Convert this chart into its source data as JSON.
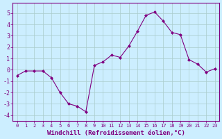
{
  "x": [
    0,
    1,
    2,
    3,
    4,
    5,
    6,
    7,
    8,
    9,
    10,
    11,
    12,
    13,
    14,
    15,
    16,
    17,
    18,
    19,
    20,
    21,
    22,
    23
  ],
  "y": [
    -0.5,
    -0.1,
    -0.1,
    -0.1,
    -0.7,
    -2.0,
    -3.0,
    -3.2,
    -3.7,
    0.4,
    0.7,
    1.3,
    1.1,
    2.1,
    3.4,
    4.8,
    5.1,
    4.3,
    3.3,
    3.1,
    0.9,
    0.5,
    -0.2,
    0.1
  ],
  "line_color": "#800080",
  "marker": "D",
  "marker_size": 2,
  "bg_color": "#cceeff",
  "grid_color": "#aacccc",
  "xlabel": "Windchill (Refroidissement éolien,°C)",
  "ylim": [
    -4.5,
    5.9
  ],
  "xlim": [
    -0.5,
    23.5
  ],
  "yticks": [
    -4,
    -3,
    -2,
    -1,
    0,
    1,
    2,
    3,
    4,
    5
  ],
  "xticks": [
    0,
    1,
    2,
    3,
    4,
    5,
    6,
    7,
    8,
    9,
    10,
    11,
    12,
    13,
    14,
    15,
    16,
    17,
    18,
    19,
    20,
    21,
    22,
    23
  ],
  "label_color": "#800080",
  "tick_color": "#800080",
  "spine_color": "#800080",
  "xlabel_fontsize": 6.5,
  "xtick_fontsize": 5,
  "ytick_fontsize": 6
}
